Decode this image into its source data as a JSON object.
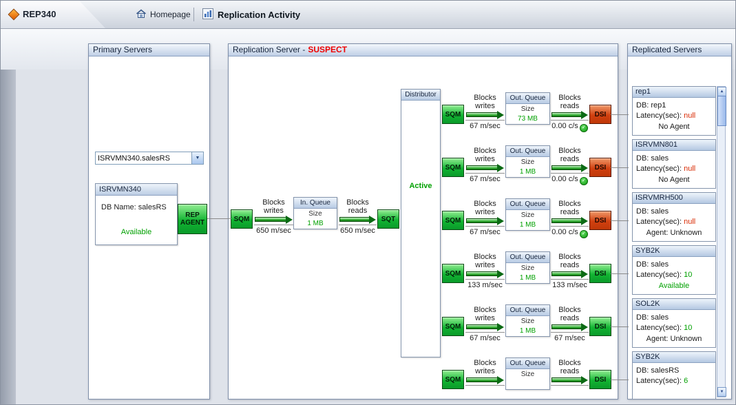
{
  "colors": {
    "ok_green": "#00a000",
    "error_red": "#d82800",
    "suspect_red": "#ee0000",
    "node_green": "#12b432",
    "node_red": "#d04010"
  },
  "header": {
    "app_title": "REP340",
    "nav": {
      "homepage_label": "Homepage",
      "activity_label": "Replication Activity"
    }
  },
  "primary_panel": {
    "title": "Primary Servers",
    "server_selector": {
      "value": "ISRVMN340.salesRS"
    },
    "server_box": {
      "name": "ISRVMN340",
      "db_line": "DB Name: salesRS",
      "status": "Available",
      "agent_label": "REP AGENT"
    }
  },
  "replication_panel": {
    "title_prefix": "Replication Server -",
    "status": "SUSPECT",
    "inbound": {
      "sqm_label": "SQM",
      "writes_label_top": "Blocks",
      "writes_label_bottom": "writes",
      "writes_value": "650 m/sec",
      "queue_title": "In. Queue",
      "queue_size_label": "Size",
      "queue_size_value": "1 MB",
      "reads_label_top": "Blocks",
      "reads_label_bottom": "reads",
      "reads_value": "650 m/sec",
      "sqt_label": "SQT"
    },
    "distributor": {
      "title": "Distributor",
      "status": "Active"
    },
    "outbound_rows": [
      {
        "sqm_label": "SQM",
        "writes_label_top": "Blocks",
        "writes_label_bottom": "writes",
        "writes_value": "67 m/sec",
        "queue_title": "Out. Queue",
        "queue_size_label": "Size",
        "queue_size_value": "73 MB",
        "reads_label_top": "Blocks",
        "reads_label_bottom": "reads",
        "reads_value": "0.00 c/s",
        "reads_ok_icon": true,
        "dsi_label": "DSI",
        "dsi_state": "down"
      },
      {
        "sqm_label": "SQM",
        "writes_label_top": "Blocks",
        "writes_label_bottom": "writes",
        "writes_value": "67 m/sec",
        "queue_title": "Out. Queue",
        "queue_size_label": "Size",
        "queue_size_value": "1 MB",
        "reads_label_top": "Blocks",
        "reads_label_bottom": "reads",
        "reads_value": "0.00 c/s",
        "reads_ok_icon": true,
        "dsi_label": "DSI",
        "dsi_state": "down"
      },
      {
        "sqm_label": "SQM",
        "writes_label_top": "Blocks",
        "writes_label_bottom": "writes",
        "writes_value": "67 m/sec",
        "queue_title": "Out. Queue",
        "queue_size_label": "Size",
        "queue_size_value": "1 MB",
        "reads_label_top": "Blocks",
        "reads_label_bottom": "reads",
        "reads_value": "0.00 c/s",
        "reads_ok_icon": true,
        "dsi_label": "DSI",
        "dsi_state": "down"
      },
      {
        "sqm_label": "SQM",
        "writes_label_top": "Blocks",
        "writes_label_bottom": "writes",
        "writes_value": "133 m/sec",
        "queue_title": "Out. Queue",
        "queue_size_label": "Size",
        "queue_size_value": "1 MB",
        "reads_label_top": "Blocks",
        "reads_label_bottom": "reads",
        "reads_value": "133 m/sec",
        "reads_ok_icon": false,
        "dsi_label": "DSI",
        "dsi_state": "up"
      },
      {
        "sqm_label": "SQM",
        "writes_label_top": "Blocks",
        "writes_label_bottom": "writes",
        "writes_value": "67 m/sec",
        "queue_title": "Out. Queue",
        "queue_size_label": "Size",
        "queue_size_value": "1 MB",
        "reads_label_top": "Blocks",
        "reads_label_bottom": "reads",
        "reads_value": "67 m/sec",
        "reads_ok_icon": false,
        "dsi_label": "DSI",
        "dsi_state": "up"
      },
      {
        "sqm_label": "SQM",
        "writes_label_top": "Blocks",
        "writes_label_bottom": "writes",
        "writes_value": "",
        "queue_title": "Out. Queue",
        "queue_size_label": "Size",
        "queue_size_value": "",
        "reads_label_top": "Blocks",
        "reads_label_bottom": "reads",
        "reads_value": "",
        "reads_ok_icon": false,
        "dsi_label": "DSI",
        "dsi_state": "up"
      }
    ]
  },
  "replicated_panel": {
    "title": "Replicated Servers",
    "servers": [
      {
        "name": "rep1",
        "db_line": "DB: rep1",
        "latency_label": "Latency(sec):",
        "latency_value": "null",
        "latency_state": "error",
        "agent_line": "No Agent",
        "agent_state": "normal"
      },
      {
        "name": "ISRVMN801",
        "db_line": "DB: sales",
        "latency_label": "Latency(sec):",
        "latency_value": "null",
        "latency_state": "error",
        "agent_line": "No Agent",
        "agent_state": "normal"
      },
      {
        "name": "ISRVMRH500",
        "db_line": "DB: sales",
        "latency_label": "Latency(sec):",
        "latency_value": "null",
        "latency_state": "error",
        "agent_line": "Agent: Unknown",
        "agent_state": "normal"
      },
      {
        "name": "SYB2K",
        "db_line": "DB: sales",
        "latency_label": "Latency(sec):",
        "latency_value": "10",
        "latency_state": "ok",
        "agent_line": "Available",
        "agent_state": "ok"
      },
      {
        "name": "SOL2K",
        "db_line": "DB: sales",
        "latency_label": "Latency(sec):",
        "latency_value": "10",
        "latency_state": "ok",
        "agent_line": "Agent: Unknown",
        "agent_state": "normal"
      },
      {
        "name": "SYB2K",
        "db_line": "DB: salesRS",
        "latency_label": "Latency(sec):",
        "latency_value": "6",
        "latency_state": "ok",
        "agent_line": "",
        "agent_state": "normal"
      }
    ]
  }
}
